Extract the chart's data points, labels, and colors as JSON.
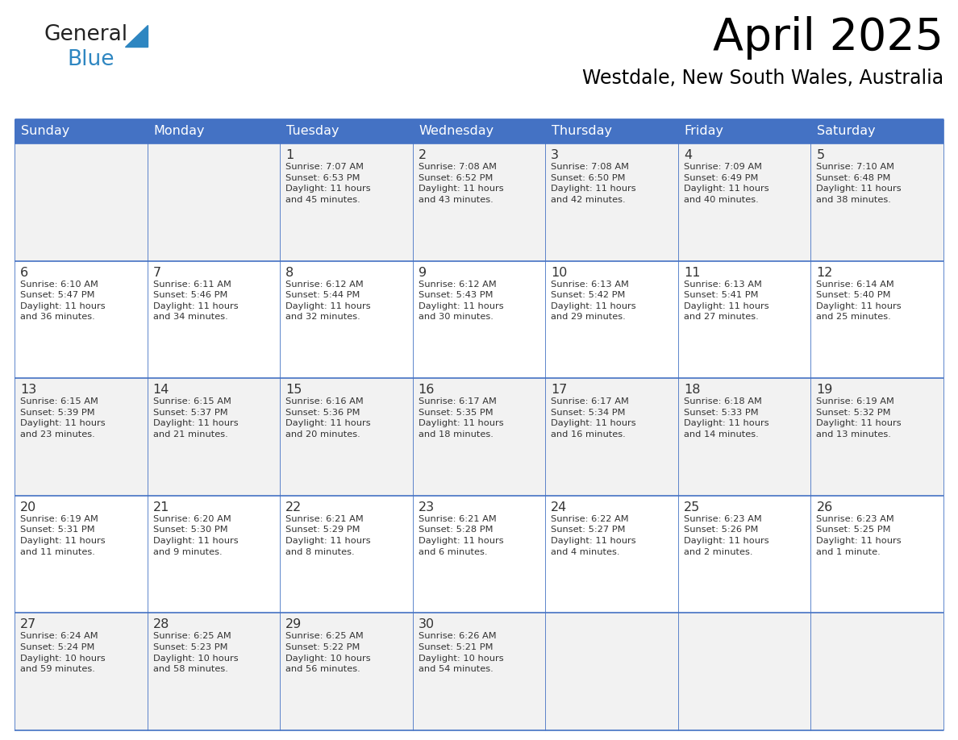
{
  "title": "April 2025",
  "subtitle": "Westdale, New South Wales, Australia",
  "header_color": "#4472C4",
  "header_text_color": "#FFFFFF",
  "cell_bg_even": "#F2F2F2",
  "cell_bg_odd": "#FFFFFF",
  "border_color": "#4472C4",
  "row_line_color": "#4472C4",
  "text_color": "#333333",
  "day_num_color": "#333333",
  "day_headers": [
    "Sunday",
    "Monday",
    "Tuesday",
    "Wednesday",
    "Thursday",
    "Friday",
    "Saturday"
  ],
  "weeks": [
    [
      {
        "day": "",
        "text": ""
      },
      {
        "day": "",
        "text": ""
      },
      {
        "day": "1",
        "text": "Sunrise: 7:07 AM\nSunset: 6:53 PM\nDaylight: 11 hours\nand 45 minutes."
      },
      {
        "day": "2",
        "text": "Sunrise: 7:08 AM\nSunset: 6:52 PM\nDaylight: 11 hours\nand 43 minutes."
      },
      {
        "day": "3",
        "text": "Sunrise: 7:08 AM\nSunset: 6:50 PM\nDaylight: 11 hours\nand 42 minutes."
      },
      {
        "day": "4",
        "text": "Sunrise: 7:09 AM\nSunset: 6:49 PM\nDaylight: 11 hours\nand 40 minutes."
      },
      {
        "day": "5",
        "text": "Sunrise: 7:10 AM\nSunset: 6:48 PM\nDaylight: 11 hours\nand 38 minutes."
      }
    ],
    [
      {
        "day": "6",
        "text": "Sunrise: 6:10 AM\nSunset: 5:47 PM\nDaylight: 11 hours\nand 36 minutes."
      },
      {
        "day": "7",
        "text": "Sunrise: 6:11 AM\nSunset: 5:46 PM\nDaylight: 11 hours\nand 34 minutes."
      },
      {
        "day": "8",
        "text": "Sunrise: 6:12 AM\nSunset: 5:44 PM\nDaylight: 11 hours\nand 32 minutes."
      },
      {
        "day": "9",
        "text": "Sunrise: 6:12 AM\nSunset: 5:43 PM\nDaylight: 11 hours\nand 30 minutes."
      },
      {
        "day": "10",
        "text": "Sunrise: 6:13 AM\nSunset: 5:42 PM\nDaylight: 11 hours\nand 29 minutes."
      },
      {
        "day": "11",
        "text": "Sunrise: 6:13 AM\nSunset: 5:41 PM\nDaylight: 11 hours\nand 27 minutes."
      },
      {
        "day": "12",
        "text": "Sunrise: 6:14 AM\nSunset: 5:40 PM\nDaylight: 11 hours\nand 25 minutes."
      }
    ],
    [
      {
        "day": "13",
        "text": "Sunrise: 6:15 AM\nSunset: 5:39 PM\nDaylight: 11 hours\nand 23 minutes."
      },
      {
        "day": "14",
        "text": "Sunrise: 6:15 AM\nSunset: 5:37 PM\nDaylight: 11 hours\nand 21 minutes."
      },
      {
        "day": "15",
        "text": "Sunrise: 6:16 AM\nSunset: 5:36 PM\nDaylight: 11 hours\nand 20 minutes."
      },
      {
        "day": "16",
        "text": "Sunrise: 6:17 AM\nSunset: 5:35 PM\nDaylight: 11 hours\nand 18 minutes."
      },
      {
        "day": "17",
        "text": "Sunrise: 6:17 AM\nSunset: 5:34 PM\nDaylight: 11 hours\nand 16 minutes."
      },
      {
        "day": "18",
        "text": "Sunrise: 6:18 AM\nSunset: 5:33 PM\nDaylight: 11 hours\nand 14 minutes."
      },
      {
        "day": "19",
        "text": "Sunrise: 6:19 AM\nSunset: 5:32 PM\nDaylight: 11 hours\nand 13 minutes."
      }
    ],
    [
      {
        "day": "20",
        "text": "Sunrise: 6:19 AM\nSunset: 5:31 PM\nDaylight: 11 hours\nand 11 minutes."
      },
      {
        "day": "21",
        "text": "Sunrise: 6:20 AM\nSunset: 5:30 PM\nDaylight: 11 hours\nand 9 minutes."
      },
      {
        "day": "22",
        "text": "Sunrise: 6:21 AM\nSunset: 5:29 PM\nDaylight: 11 hours\nand 8 minutes."
      },
      {
        "day": "23",
        "text": "Sunrise: 6:21 AM\nSunset: 5:28 PM\nDaylight: 11 hours\nand 6 minutes."
      },
      {
        "day": "24",
        "text": "Sunrise: 6:22 AM\nSunset: 5:27 PM\nDaylight: 11 hours\nand 4 minutes."
      },
      {
        "day": "25",
        "text": "Sunrise: 6:23 AM\nSunset: 5:26 PM\nDaylight: 11 hours\nand 2 minutes."
      },
      {
        "day": "26",
        "text": "Sunrise: 6:23 AM\nSunset: 5:25 PM\nDaylight: 11 hours\nand 1 minute."
      }
    ],
    [
      {
        "day": "27",
        "text": "Sunrise: 6:24 AM\nSunset: 5:24 PM\nDaylight: 10 hours\nand 59 minutes."
      },
      {
        "day": "28",
        "text": "Sunrise: 6:25 AM\nSunset: 5:23 PM\nDaylight: 10 hours\nand 58 minutes."
      },
      {
        "day": "29",
        "text": "Sunrise: 6:25 AM\nSunset: 5:22 PM\nDaylight: 10 hours\nand 56 minutes."
      },
      {
        "day": "30",
        "text": "Sunrise: 6:26 AM\nSunset: 5:21 PM\nDaylight: 10 hours\nand 54 minutes."
      },
      {
        "day": "",
        "text": ""
      },
      {
        "day": "",
        "text": ""
      },
      {
        "day": "",
        "text": ""
      }
    ]
  ],
  "logo_general_color": "#222222",
  "logo_blue_color": "#2E86C1",
  "logo_triangle_color": "#2E86C1"
}
